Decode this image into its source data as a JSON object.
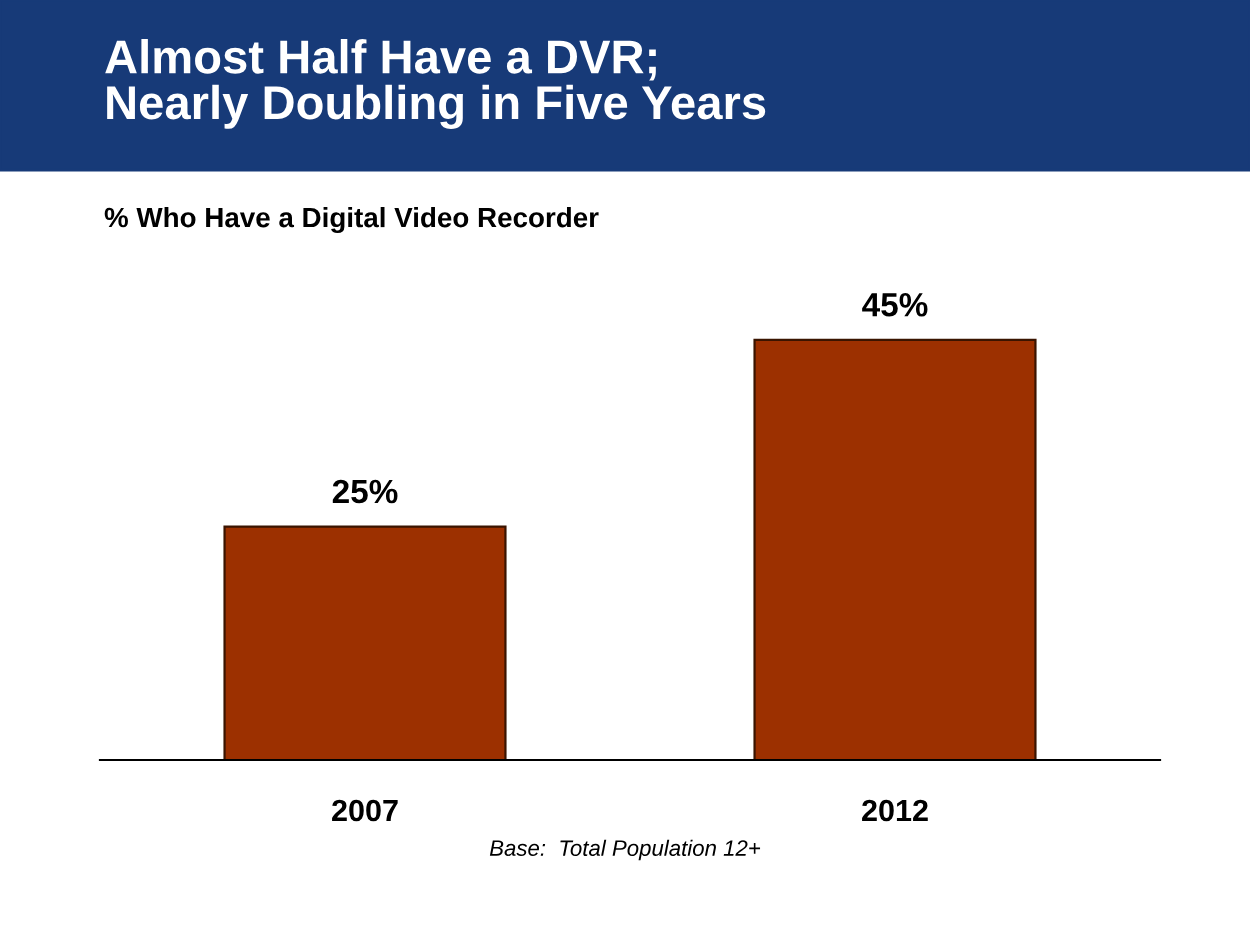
{
  "chart_data": {
    "type": "bar",
    "title": "Almost Half Have a DVR;\nNearly Doubling in Five Years",
    "subtitle": "% Who Have a Digital Video Recorder",
    "categories": [
      "2007",
      "2012"
    ],
    "values": [
      25,
      45
    ],
    "color": "#9c3000",
    "value_labels": [
      "25%",
      "45%"
    ],
    "annotations": [
      "Base:  Total Population 12+"
    ],
    "grid": false,
    "legend": false
  }
}
